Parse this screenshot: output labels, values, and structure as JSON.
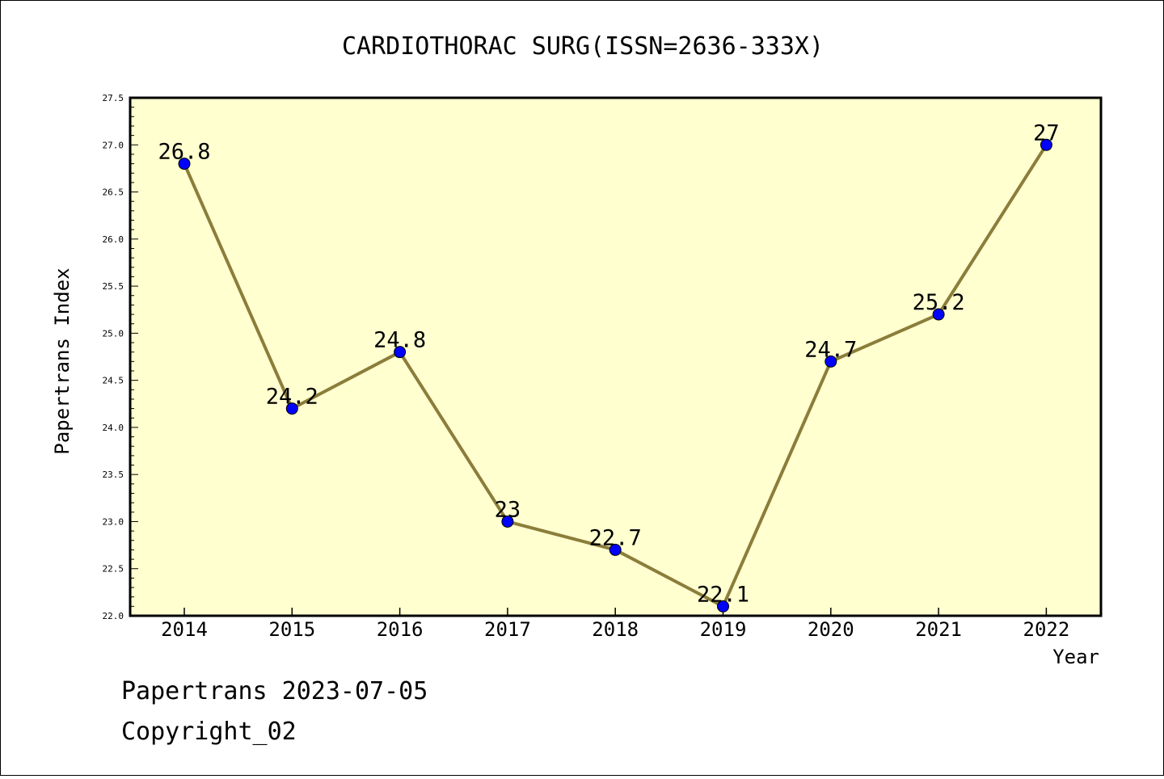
{
  "footer": {
    "line1": "Papertrans 2023-07-05",
    "line2": "Copyright_02"
  },
  "chart_data": {
    "type": "line",
    "title": "CARDIOTHORAC SURG(ISSN=2636-333X)",
    "xlabel": "Year",
    "ylabel": "Papertrans Index",
    "categories": [
      "2014",
      "2015",
      "2016",
      "2017",
      "2018",
      "2019",
      "2020",
      "2021",
      "2022"
    ],
    "series": [
      {
        "values": [
          26.8,
          24.2,
          24.8,
          23.0,
          22.7,
          22.1,
          24.7,
          25.2,
          27.0
        ],
        "labels": [
          "26.8",
          "24.2",
          "24.8",
          "23",
          "22.7",
          "22.1",
          "24.7",
          "25.2",
          "27"
        ]
      }
    ],
    "ylim": [
      22.0,
      27.5
    ],
    "yticks": [
      "22.0",
      "22.5",
      "23.0",
      "23.5",
      "24.0",
      "24.5",
      "25.0",
      "25.5",
      "26.0",
      "26.5",
      "27.0",
      "27.5"
    ],
    "grid": false,
    "colors": {
      "plot_background": "#ffffd0",
      "line": "#8b7d3a",
      "marker": "#0000ff"
    }
  }
}
